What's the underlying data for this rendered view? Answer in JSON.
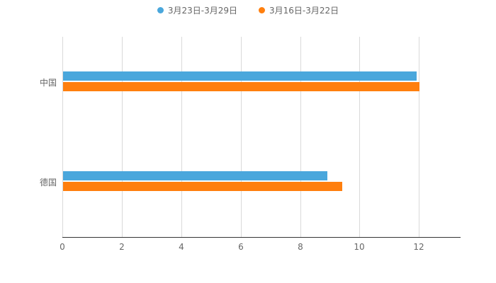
{
  "chart_data": {
    "type": "bar",
    "orientation": "horizontal",
    "title": "",
    "categories": [
      "中国",
      "德国"
    ],
    "series": [
      {
        "name": "3月23日-3月29日",
        "color": "#4AA7DC",
        "values": [
          11.9,
          8.9
        ]
      },
      {
        "name": "3月16日-3月22日",
        "color": "#FF7F0E",
        "values": [
          12.0,
          9.4
        ]
      }
    ],
    "xlabel": "",
    "ylabel": "",
    "xlim": [
      0,
      13.4
    ],
    "xticks": [
      0,
      2,
      4,
      6,
      8,
      10,
      12
    ],
    "grid": true,
    "legend_position": "top",
    "colors": {
      "gridline": "#d9d9d9",
      "axis_line": "#333333",
      "tick_label": "#666666",
      "category_label": "#666666",
      "legend_text": "#666666",
      "background": "#ffffff"
    }
  }
}
